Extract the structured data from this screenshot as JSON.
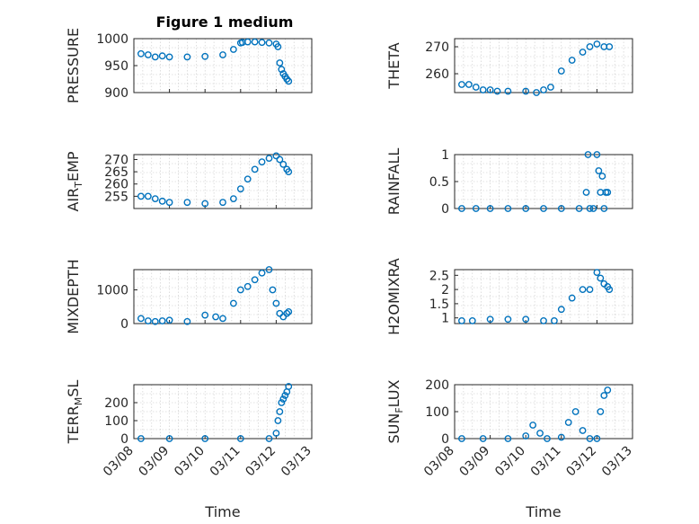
{
  "title": "Figure 1 medium",
  "color": "#0072BD",
  "chart_data": [
    {
      "type": "scatter",
      "ylabel": "PRESSURE",
      "ylim": [
        900,
        1000
      ],
      "yticks": [
        "900",
        "950",
        "1000"
      ],
      "grid": true,
      "xticklabels_visible": false,
      "x": [
        0.2,
        0.4,
        0.6,
        0.8,
        1.0,
        1.5,
        2.0,
        2.5,
        2.8,
        3.0,
        3.05,
        3.2,
        3.4,
        3.6,
        3.8,
        4.0,
        4.05,
        4.1,
        4.15,
        4.2,
        4.25,
        4.3,
        4.35
      ],
      "y": [
        972,
        970,
        966,
        968,
        966,
        966,
        967,
        970,
        980,
        992,
        993,
        994,
        994,
        993,
        992,
        990,
        985,
        955,
        943,
        935,
        930,
        925,
        921
      ]
    },
    {
      "type": "scatter",
      "ylabel": "THETA",
      "ylim": [
        253,
        273
      ],
      "yticks": [
        "260",
        "270"
      ],
      "grid": true,
      "xticklabels_visible": false,
      "x": [
        0.2,
        0.4,
        0.6,
        0.8,
        1.0,
        1.2,
        1.5,
        2.0,
        2.3,
        2.5,
        2.7,
        3.0,
        3.3,
        3.6,
        3.8,
        4.0,
        4.2,
        4.35
      ],
      "y": [
        256,
        256,
        255,
        254,
        254,
        253.5,
        253.5,
        253.5,
        253,
        254,
        255,
        261,
        265,
        268,
        270,
        271,
        270,
        270
      ]
    },
    {
      "type": "scatter",
      "ylabel": "AIR_TEMP",
      "ylim": [
        250,
        272
      ],
      "yticks": [
        "255",
        "260",
        "265",
        "270"
      ],
      "grid": true,
      "xticklabels_visible": false,
      "x": [
        0.2,
        0.4,
        0.6,
        0.8,
        1.0,
        1.5,
        2.0,
        2.5,
        2.8,
        3.0,
        3.2,
        3.4,
        3.6,
        3.8,
        4.0,
        4.1,
        4.2,
        4.3,
        4.35
      ],
      "y": [
        255,
        255,
        254,
        253,
        252.5,
        252.5,
        252,
        252.5,
        254,
        258,
        262,
        266,
        269,
        270.5,
        271.5,
        270,
        268,
        266,
        265
      ]
    },
    {
      "type": "scatter",
      "ylabel": "RAINFALL",
      "ylim": [
        0,
        1
      ],
      "yticks": [
        "0",
        "0.5",
        "1"
      ],
      "grid": true,
      "xticklabels_visible": false,
      "x": [
        0.2,
        0.6,
        1.0,
        1.5,
        2.0,
        2.5,
        3.0,
        3.5,
        3.7,
        3.75,
        3.8,
        3.9,
        4.0,
        4.05,
        4.1,
        4.15,
        4.2,
        4.25,
        4.3
      ],
      "y": [
        0,
        0,
        0,
        0,
        0,
        0,
        0,
        0,
        0.3,
        1.0,
        0,
        0,
        1.0,
        0.7,
        0.3,
        0.6,
        0,
        0.3,
        0.3
      ]
    },
    {
      "type": "scatter",
      "ylabel": "MIXDEPTH",
      "ylim": [
        0,
        1600
      ],
      "yticks": [
        "0",
        "1000"
      ],
      "grid": true,
      "xticklabels_visible": false,
      "x": [
        0.2,
        0.4,
        0.6,
        0.8,
        1.0,
        1.5,
        2.0,
        2.3,
        2.5,
        2.8,
        3.0,
        3.2,
        3.4,
        3.6,
        3.8,
        3.9,
        4.0,
        4.1,
        4.2,
        4.3,
        4.35
      ],
      "y": [
        150,
        80,
        60,
        80,
        100,
        60,
        250,
        200,
        150,
        600,
        1000,
        1100,
        1300,
        1500,
        1600,
        1000,
        600,
        300,
        200,
        300,
        350
      ]
    },
    {
      "type": "scatter",
      "ylabel": "H2OMIXRA",
      "ylim": [
        0.8,
        2.7
      ],
      "yticks": [
        "1",
        "1.5",
        "2",
        "2.5"
      ],
      "grid": true,
      "xticklabels_visible": false,
      "x": [
        0.2,
        0.5,
        1.0,
        1.5,
        2.0,
        2.5,
        2.8,
        3.0,
        3.3,
        3.6,
        3.8,
        4.0,
        4.1,
        4.2,
        4.3,
        4.35
      ],
      "y": [
        0.9,
        0.9,
        0.95,
        0.95,
        0.95,
        0.9,
        0.9,
        1.3,
        1.7,
        2.0,
        2.0,
        2.6,
        2.4,
        2.2,
        2.1,
        2.0
      ]
    },
    {
      "type": "scatter",
      "ylabel": "TERR_MSL",
      "ylim": [
        0,
        300
      ],
      "yticks": [
        "0",
        "100",
        "200"
      ],
      "grid": true,
      "xticklabels_visible": true,
      "x": [
        0.2,
        1.0,
        2.0,
        3.0,
        3.8,
        4.0,
        4.05,
        4.1,
        4.15,
        4.2,
        4.25,
        4.3,
        4.35
      ],
      "y": [
        0,
        0,
        0,
        0,
        0,
        30,
        100,
        150,
        200,
        220,
        240,
        260,
        290
      ]
    },
    {
      "type": "scatter",
      "ylabel": "SUN_FLUX",
      "ylim": [
        0,
        200
      ],
      "yticks": [
        "0",
        "100",
        "200"
      ],
      "grid": true,
      "xticklabels_visible": true,
      "x": [
        0.2,
        0.8,
        1.5,
        2.0,
        2.2,
        2.4,
        2.6,
        3.0,
        3.2,
        3.4,
        3.6,
        3.8,
        4.0,
        4.1,
        4.2,
        4.3
      ],
      "y": [
        0,
        0,
        0,
        10,
        50,
        20,
        0,
        5,
        60,
        100,
        30,
        0,
        0,
        100,
        160,
        180
      ]
    }
  ],
  "xlim_days": [
    0,
    5
  ],
  "xticklabels": [
    "03/08",
    "03/09",
    "03/10",
    "03/11",
    "03/12",
    "03/13"
  ],
  "xlabel": "Time",
  "ylabel_parts": [
    {
      "base": "PRESSURE",
      "sub": "",
      "rest": ""
    },
    {
      "base": "THETA",
      "sub": "",
      "rest": ""
    },
    {
      "base": "AIR",
      "sub": "T",
      "rest": "EMP"
    },
    {
      "base": "RAINFALL",
      "sub": "",
      "rest": ""
    },
    {
      "base": "MIXDEPTH",
      "sub": "",
      "rest": ""
    },
    {
      "base": "H2OMIXRA",
      "sub": "",
      "rest": ""
    },
    {
      "base": "TERR",
      "sub": "M",
      "rest": "SL"
    },
    {
      "base": "SUN",
      "sub": "F",
      "rest": "LUX"
    }
  ]
}
